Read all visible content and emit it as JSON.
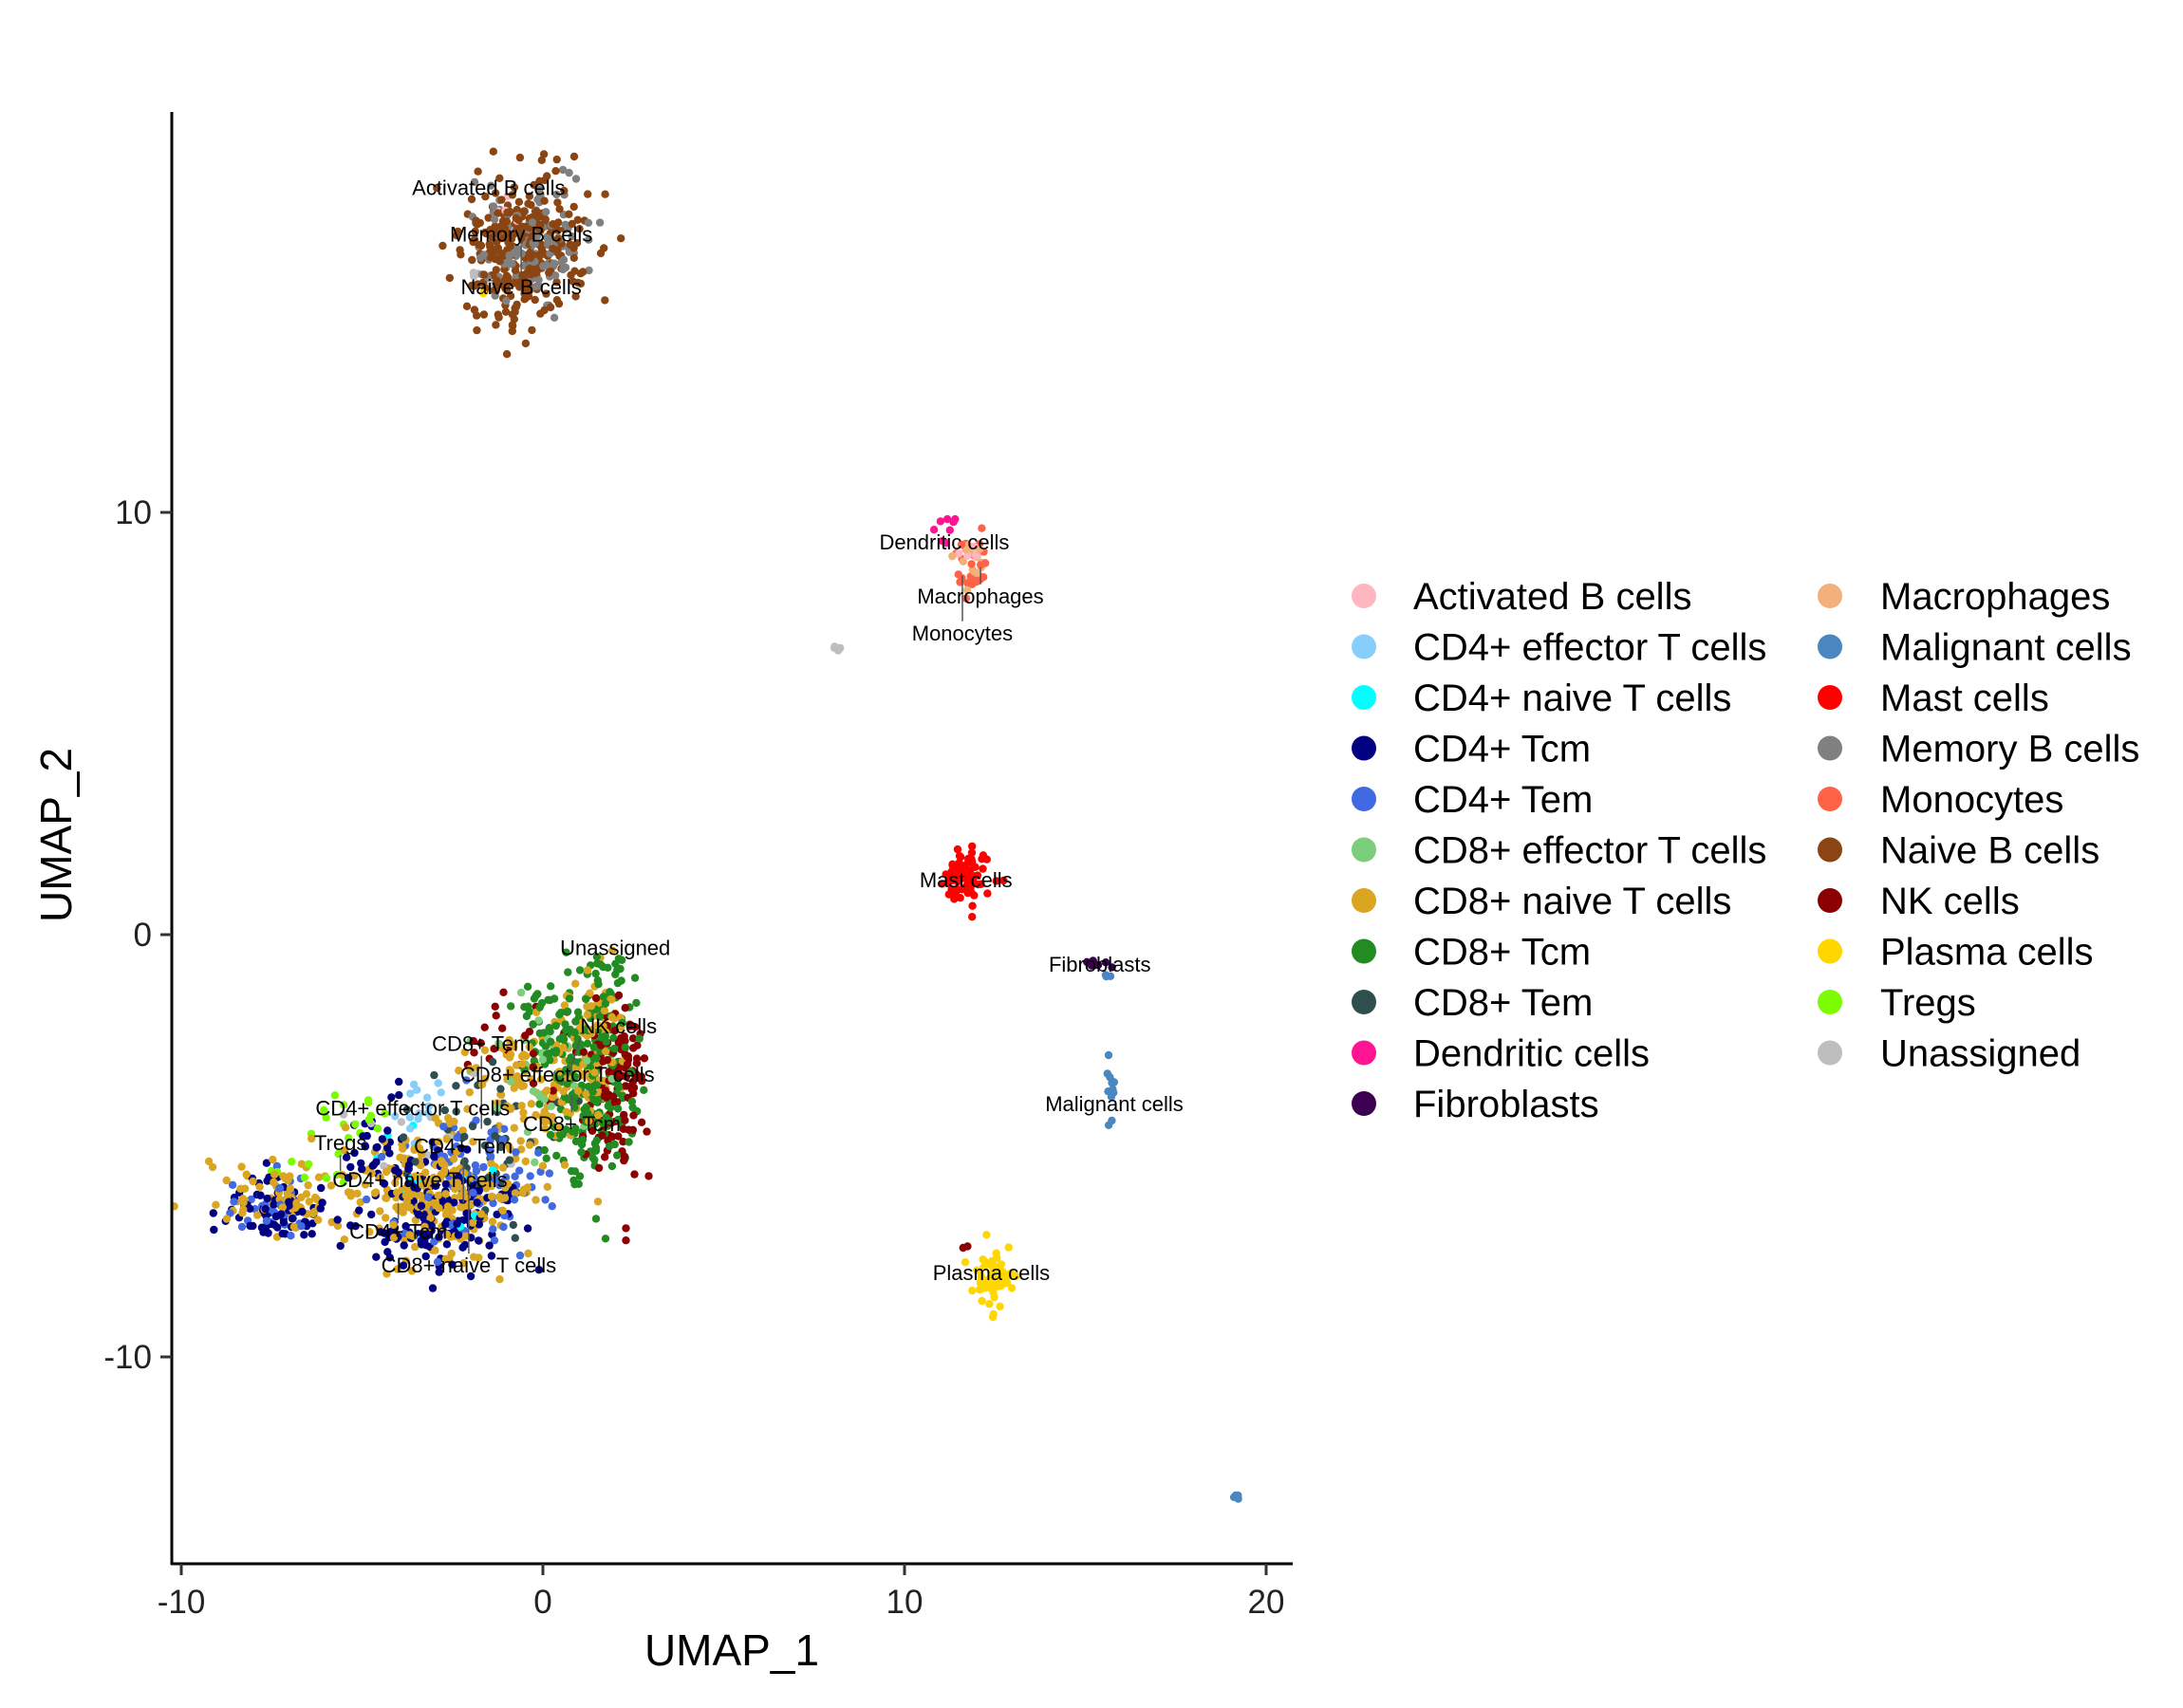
{
  "chart_data": {
    "type": "scatter",
    "xlabel": "UMAP_1",
    "ylabel": "UMAP_2",
    "xlim": [
      -10.2,
      20.8
    ],
    "ylim": [
      -14.9,
      19.5
    ],
    "xticks": [
      -10,
      0,
      10,
      20
    ],
    "yticks": [
      -10,
      0,
      10
    ],
    "grid": false,
    "legend_placement": "right",
    "legend_columns": 2,
    "cell_types": [
      {
        "name": "Activated B cells",
        "color": "#FFB6C1",
        "label": [
          -1.5,
          17.7
        ],
        "groups": [
          [
            -1.0,
            16.9,
            0.6,
            0.5,
            6
          ],
          [
            11.8,
            8.9,
            0.2,
            0.2,
            6
          ]
        ]
      },
      {
        "name": "CD4+ effector T cells",
        "color": "#87CEFA",
        "label": [
          -3.6,
          -4.1
        ],
        "groups": [
          [
            -3.5,
            -4.3,
            0.6,
            0.4,
            15
          ]
        ]
      },
      {
        "name": "CD4+ naive T cells",
        "color": "#00FFFF",
        "label": [
          -3.4,
          -5.8
        ],
        "groups": [
          [
            -3.0,
            -6.0,
            0.8,
            0.8,
            15
          ]
        ]
      },
      {
        "name": "CD4+ Tcm",
        "color": "#000080",
        "label": [
          -4.0,
          -6.35
        ],
        "groups": [
          [
            -3.0,
            -6.6,
            1.0,
            0.7,
            160
          ],
          [
            -7.5,
            -6.5,
            0.7,
            0.4,
            70
          ],
          [
            -4.5,
            -5.0,
            0.6,
            0.5,
            40
          ]
        ]
      },
      {
        "name": "CD4+ Tem",
        "color": "#4169E1",
        "label": [
          -2.2,
          -6.35
        ],
        "groups": [
          [
            -2.0,
            -5.8,
            1.0,
            0.8,
            90
          ],
          [
            -7.5,
            -6.5,
            0.7,
            0.4,
            30
          ]
        ]
      },
      {
        "name": "CD8+ effector T cells",
        "color": "#7CCD7C",
        "label": [
          0.4,
          -3.3
        ],
        "groups": [
          [
            0.0,
            -3.5,
            1.0,
            1.0,
            30
          ]
        ]
      },
      {
        "name": "CD8+ naive T cells",
        "color": "#DAA520",
        "label": [
          -2.05,
          -5.8
        ],
        "groups": [
          [
            -3.0,
            -6.2,
            1.1,
            0.8,
            250
          ],
          [
            -7.0,
            -6.2,
            1.0,
            0.45,
            80
          ],
          [
            -0.3,
            -3.6,
            0.9,
            0.9,
            120
          ],
          [
            1.3,
            -2.5,
            0.5,
            1.1,
            80
          ]
        ]
      },
      {
        "name": "CD8+ Tcm",
        "color": "#228B22",
        "label": [
          0.8,
          -3.8
        ],
        "groups": [
          [
            1.3,
            -3.6,
            0.6,
            1.2,
            200
          ],
          [
            0.4,
            -2.2,
            0.6,
            0.6,
            60
          ],
          [
            1.8,
            -1.0,
            0.3,
            0.4,
            25
          ]
        ]
      },
      {
        "name": "CD8+ Tem",
        "color": "#2F4F4F",
        "label": [
          -1.7,
          -4.6
        ],
        "groups": [
          [
            -1.5,
            -4.6,
            1.2,
            0.8,
            50
          ]
        ]
      },
      {
        "name": "Dendritic cells",
        "color": "#FF1493",
        "label": [
          11.1,
          9.3
        ],
        "groups": [
          [
            11.2,
            9.6,
            0.15,
            0.3,
            8
          ]
        ]
      },
      {
        "name": "Fibroblasts",
        "color": "#3D0050",
        "label": [
          15.4,
          -0.7
        ],
        "groups": [
          [
            15.3,
            -0.7,
            0.15,
            0.05,
            8
          ]
        ]
      },
      {
        "name": "Macrophages",
        "color": "#F4B07A",
        "label": [
          12.1,
          8.7
        ],
        "groups": [
          [
            11.9,
            8.9,
            0.2,
            0.3,
            15
          ]
        ]
      },
      {
        "name": "Malignant cells",
        "color": "#4A86BF",
        "label": [
          15.8,
          -4.0
        ],
        "groups": [
          [
            15.7,
            -3.6,
            0.08,
            0.35,
            12
          ],
          [
            15.6,
            -1.0,
            0.04,
            0.1,
            3
          ],
          [
            19.2,
            -13.3,
            0.05,
            0.05,
            4
          ]
        ]
      },
      {
        "name": "Mast cells",
        "color": "#FF0000",
        "label": [
          11.7,
          1.3
        ],
        "groups": [
          [
            11.7,
            1.4,
            0.3,
            0.28,
            90
          ]
        ]
      },
      {
        "name": "Memory B cells",
        "color": "#808080",
        "label": [
          -0.6,
          16.6
        ],
        "groups": [
          [
            -0.3,
            16.4,
            0.8,
            0.7,
            120
          ]
        ]
      },
      {
        "name": "Monocytes",
        "color": "#FF6347",
        "label": [
          11.6,
          8.5
        ],
        "groups": [
          [
            11.8,
            8.6,
            0.25,
            0.35,
            25
          ]
        ]
      },
      {
        "name": "Naive B cells",
        "color": "#8B4513",
        "label": [
          -0.6,
          16.7
        ],
        "groups": [
          [
            -0.6,
            16.3,
            0.85,
            0.85,
            300
          ],
          [
            -0.9,
            14.6,
            0.25,
            0.4,
            15
          ]
        ]
      },
      {
        "name": "NK cells",
        "color": "#8B0000",
        "label": [
          0.65,
          -3.5
        ],
        "groups": [
          [
            2.0,
            -3.6,
            0.45,
            1.1,
            120
          ],
          [
            -0.5,
            -2.6,
            0.9,
            0.5,
            30
          ],
          [
            11.7,
            -7.4,
            0.05,
            0.05,
            2
          ]
        ]
      },
      {
        "name": "Plasma cells",
        "color": "#FFD700",
        "label": [
          12.4,
          -8.0
        ],
        "groups": [
          [
            12.4,
            -8.1,
            0.28,
            0.32,
            70
          ],
          [
            -1.6,
            15.2,
            0.05,
            0.05,
            2
          ]
        ]
      },
      {
        "name": "Tregs",
        "color": "#7CFC00",
        "label": [
          -5.6,
          -5.6
        ],
        "groups": [
          [
            -5.2,
            -4.3,
            0.5,
            0.3,
            15
          ],
          [
            -6.5,
            -5.6,
            0.6,
            0.3,
            10
          ]
        ]
      },
      {
        "name": "Unassigned",
        "color": "#BEBEBE",
        "label": [
          2.0,
          -0.3
        ],
        "groups": [
          [
            -3.0,
            -4.0,
            1.5,
            1.0,
            10
          ],
          [
            8.1,
            6.75,
            0.05,
            0.05,
            4
          ],
          [
            -1.7,
            15.6,
            0.2,
            0.3,
            4
          ]
        ]
      }
    ]
  }
}
